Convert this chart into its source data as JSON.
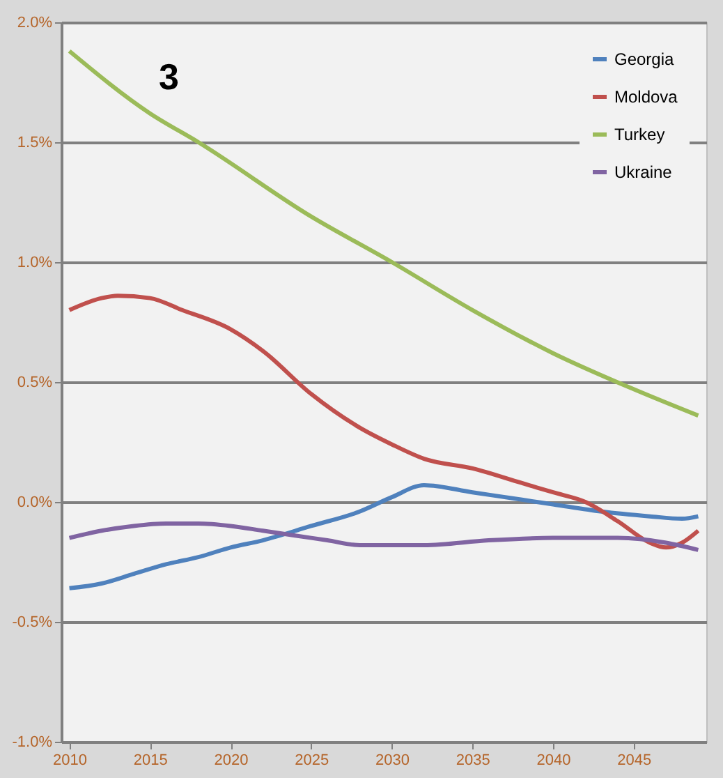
{
  "chart_data": {
    "type": "line",
    "annotations": [
      "3"
    ],
    "xlim": [
      2009.5,
      2049.5
    ],
    "xticks": [
      2010,
      2015,
      2020,
      2025,
      2030,
      2035,
      2040,
      2045
    ],
    "ylim": [
      -1.0,
      2.0
    ],
    "yticks": [
      {
        "value": -1,
        "label": "-1.0%"
      },
      {
        "value": -0.5,
        "label": "-0.5%"
      },
      {
        "value": 0,
        "label": "0.0%"
      },
      {
        "value": 0.5,
        "label": "0.5%"
      },
      {
        "value": 1,
        "label": "1.0%"
      },
      {
        "value": 1.5,
        "label": "1.5%"
      },
      {
        "value": 2,
        "label": "2.0%"
      }
    ],
    "grid": "y",
    "legend": "top right",
    "marker": "none",
    "line_style": "solid",
    "series": [
      {
        "name": "Georgia",
        "color": "#4f81bd",
        "x": [
          2010,
          2012,
          2014,
          2016,
          2018,
          2020,
          2022,
          2025,
          2028,
          2030,
          2032,
          2035,
          2038,
          2040,
          2043,
          2046,
          2048,
          2049
        ],
        "values": [
          -0.36,
          -0.34,
          -0.3,
          -0.26,
          -0.23,
          -0.19,
          -0.16,
          -0.1,
          -0.04,
          0.02,
          0.07,
          0.04,
          0.01,
          -0.01,
          -0.04,
          -0.06,
          -0.07,
          -0.06
        ]
      },
      {
        "name": "Moldova",
        "color": "#c0504d",
        "x": [
          2010,
          2012,
          2013,
          2015,
          2017,
          2020,
          2022,
          2025,
          2028,
          2030,
          2032,
          2035,
          2038,
          2040,
          2042,
          2044,
          2046,
          2047,
          2048,
          2049
        ],
        "values": [
          0.8,
          0.85,
          0.86,
          0.85,
          0.8,
          0.72,
          0.63,
          0.45,
          0.31,
          0.24,
          0.18,
          0.14,
          0.08,
          0.04,
          0.0,
          -0.08,
          -0.17,
          -0.19,
          -0.17,
          -0.12
        ]
      },
      {
        "name": "Turkey",
        "color": "#9bbb59",
        "x": [
          2010,
          2015,
          2018,
          2025,
          2030,
          2035,
          2040,
          2045,
          2049
        ],
        "values": [
          1.88,
          1.62,
          1.5,
          1.19,
          1.0,
          0.8,
          0.62,
          0.47,
          0.36
        ]
      },
      {
        "name": "Ukraine",
        "color": "#8064a2",
        "x": [
          2010,
          2012,
          2014,
          2016,
          2018,
          2020,
          2022,
          2024,
          2026,
          2028,
          2032,
          2036,
          2040,
          2044,
          2047,
          2049
        ],
        "values": [
          -0.15,
          -0.12,
          -0.1,
          -0.09,
          -0.09,
          -0.1,
          -0.12,
          -0.14,
          -0.16,
          -0.18,
          -0.18,
          -0.16,
          -0.15,
          -0.15,
          -0.17,
          -0.2
        ]
      }
    ]
  }
}
